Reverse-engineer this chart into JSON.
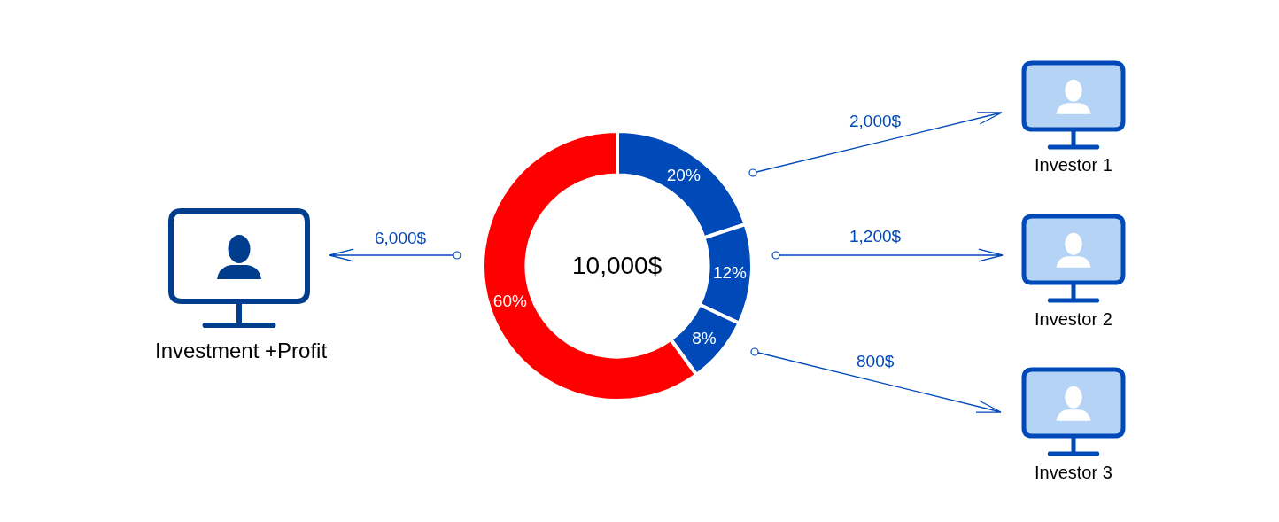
{
  "chart_data": {
    "type": "donut",
    "categories": [
      null,
      null,
      null,
      null
    ],
    "values": [
      20,
      12,
      8,
      60
    ],
    "colors": [
      "#0049b9",
      "#0049b9",
      "#0049b9",
      "#ff0000"
    ],
    "value_labels": [
      "20%",
      "12%",
      "8%",
      "60%"
    ],
    "annotations": [
      "10,000$",
      "2,000$",
      "1,200$",
      "800$",
      "6,000$",
      "Investor 1",
      "Investor 2",
      "Investor 3",
      "Investment +Profit"
    ]
  }
}
